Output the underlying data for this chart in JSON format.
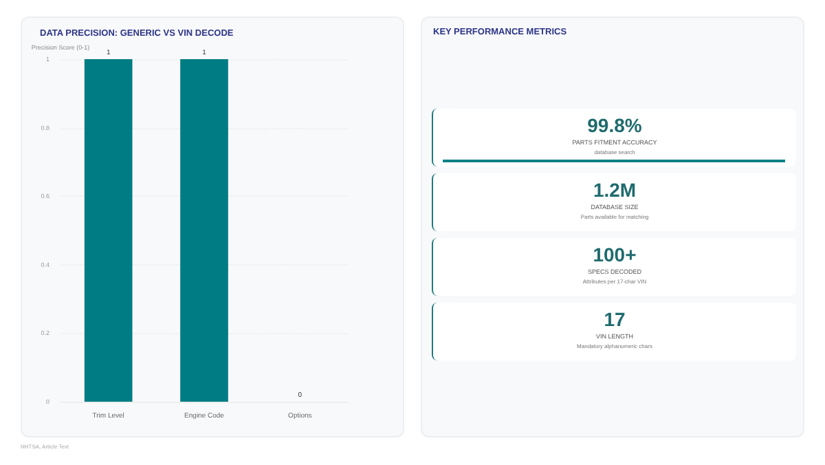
{
  "chart_data": [
    {
      "type": "bar",
      "title": "DATA PRECISION: GENERIC VS VIN DECODE",
      "ylabel": "Precision Score (0-1)",
      "categories": [
        "Trim Level",
        "Engine Code",
        "Options"
      ],
      "values": [
        1,
        1,
        0
      ],
      "color": "#007c84",
      "ylim": [
        0,
        1
      ],
      "yticks": [
        0,
        0.2,
        0.4,
        0.6,
        0.8,
        1
      ],
      "grid": "y",
      "data_labels": true,
      "annotations": [
        "NHTSA, Article Text"
      ]
    },
    {
      "type": "other",
      "title": "KEY PERFORMANCE METRICS",
      "annotations": [
        "99.8%",
        "PARTS FITMENT ACCURACY",
        "database search",
        "1.2M",
        "DATABASE SIZE",
        "Parts available for matching",
        "100+",
        "SPECS DECODED",
        "Attributes per 17-char VIN",
        "17",
        "VIN LENGTH",
        "Mandatory alphanumeric chars"
      ]
    }
  ]
}
